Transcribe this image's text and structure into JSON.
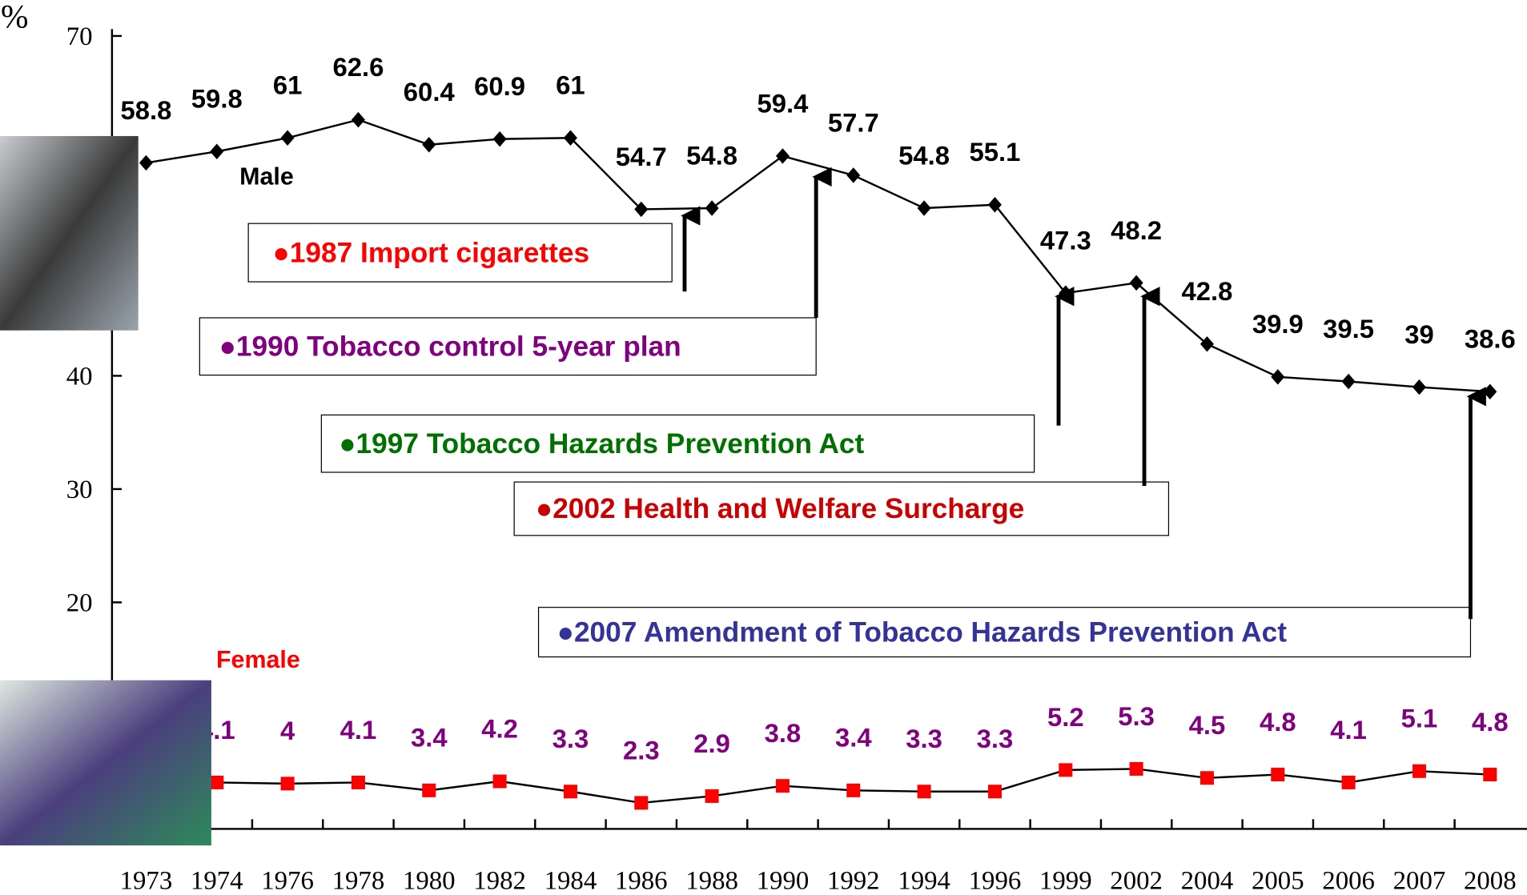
{
  "chart_data": {
    "type": "line",
    "y_unit": "%",
    "categories": [
      "1973",
      "1974",
      "1976",
      "1978",
      "1980",
      "1982",
      "1984",
      "1986",
      "1988",
      "1990",
      "1992",
      "1994",
      "1996",
      "1999",
      "2002",
      "2004",
      "2005",
      "2006",
      "2007",
      "2008"
    ],
    "series": [
      {
        "name": "Male",
        "color": "#000000",
        "label_color": "#000000",
        "marker": "diamond",
        "values": [
          58.8,
          59.8,
          61,
          62.6,
          60.4,
          60.9,
          61,
          54.7,
          54.8,
          59.4,
          57.7,
          54.8,
          55.1,
          47.3,
          48.2,
          42.8,
          39.9,
          39.5,
          39,
          38.6
        ]
      },
      {
        "name": "Female",
        "color": "#ff0000",
        "label_color": "#800080",
        "marker": "square",
        "values": [
          null,
          4.1,
          4,
          4.1,
          3.4,
          4.2,
          3.3,
          2.3,
          2.9,
          3.8,
          3.4,
          3.3,
          3.3,
          5.2,
          5.3,
          4.5,
          4.8,
          4.1,
          5.1,
          4.8
        ]
      }
    ],
    "ylim": [
      0,
      70
    ],
    "yticks": [
      20,
      30,
      40,
      70
    ],
    "annotations": [
      {
        "text": "●1987 Import cigarettes",
        "color": "#ff0000"
      },
      {
        "text": "●1990 Tobacco control 5-year plan",
        "color": "#800080"
      },
      {
        "text": "●1997 Tobacco Hazards Prevention Act",
        "color": "#007000"
      },
      {
        "text": "●2002 Health and  Welfare Surcharge",
        "color": "#cc0000"
      },
      {
        "text": "●2007 Amendment of Tobacco Hazards Prevention Act",
        "color": "#333399"
      }
    ]
  }
}
